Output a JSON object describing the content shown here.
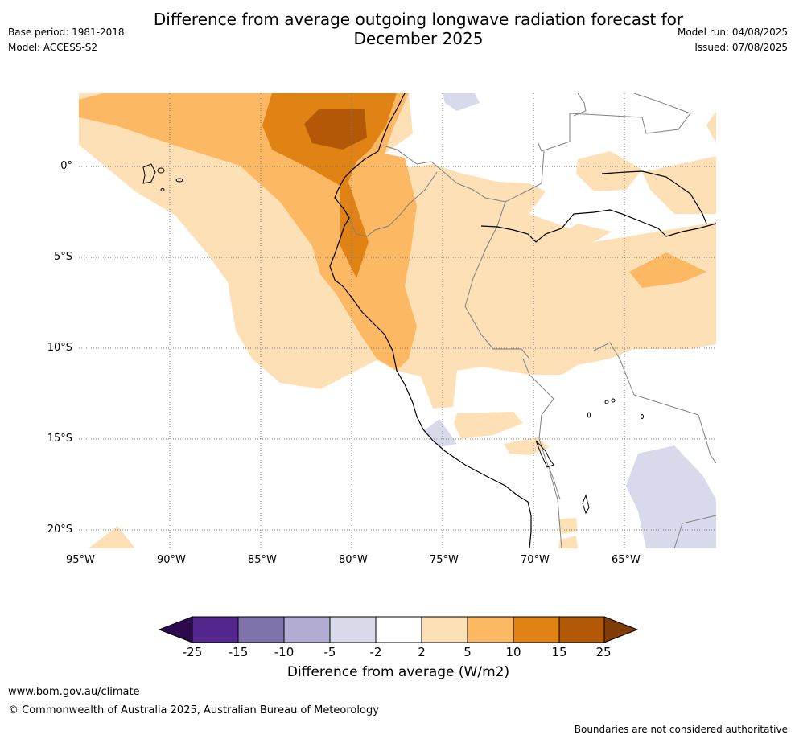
{
  "header": {
    "base_period": "Base period: 1981-2018",
    "model": "Model: ACCESS-S2",
    "title_line1": "Difference from average outgoing longwave radiation forecast for",
    "title_line2": "December 2025",
    "model_run": "Model run: 04/08/2025",
    "issued": "Issued: 07/08/2025"
  },
  "map": {
    "lat_labels": [
      "0°",
      "5°S",
      "10°S",
      "15°S",
      "20°S"
    ],
    "lon_labels": [
      "95°W",
      "90°W",
      "85°W",
      "80°W",
      "75°W",
      "70°W",
      "65°W"
    ],
    "colors": {
      "ocean": "#ffffff",
      "coast": "#000000",
      "border": "#808080",
      "grid": "#777777"
    }
  },
  "colorbar": {
    "labels": [
      "-25",
      "-15",
      "-10",
      "-5",
      "-2",
      "2",
      "5",
      "10",
      "15",
      "25"
    ],
    "colors": [
      "#2d0a4e",
      "#54278f",
      "#8073ac",
      "#b2abd2",
      "#d8daeb",
      "#ffffff",
      "#fee0b6",
      "#fdb863",
      "#e08214",
      "#b35806",
      "#7f3b08"
    ],
    "title": "Difference from average (W/m2)"
  },
  "footer": {
    "website": "www.bom.gov.au/climate",
    "copyright": "© Commonwealth of Australia 2025, Australian Bureau of Meteorology",
    "disclaimer": "Boundaries are not considered authoritative"
  }
}
